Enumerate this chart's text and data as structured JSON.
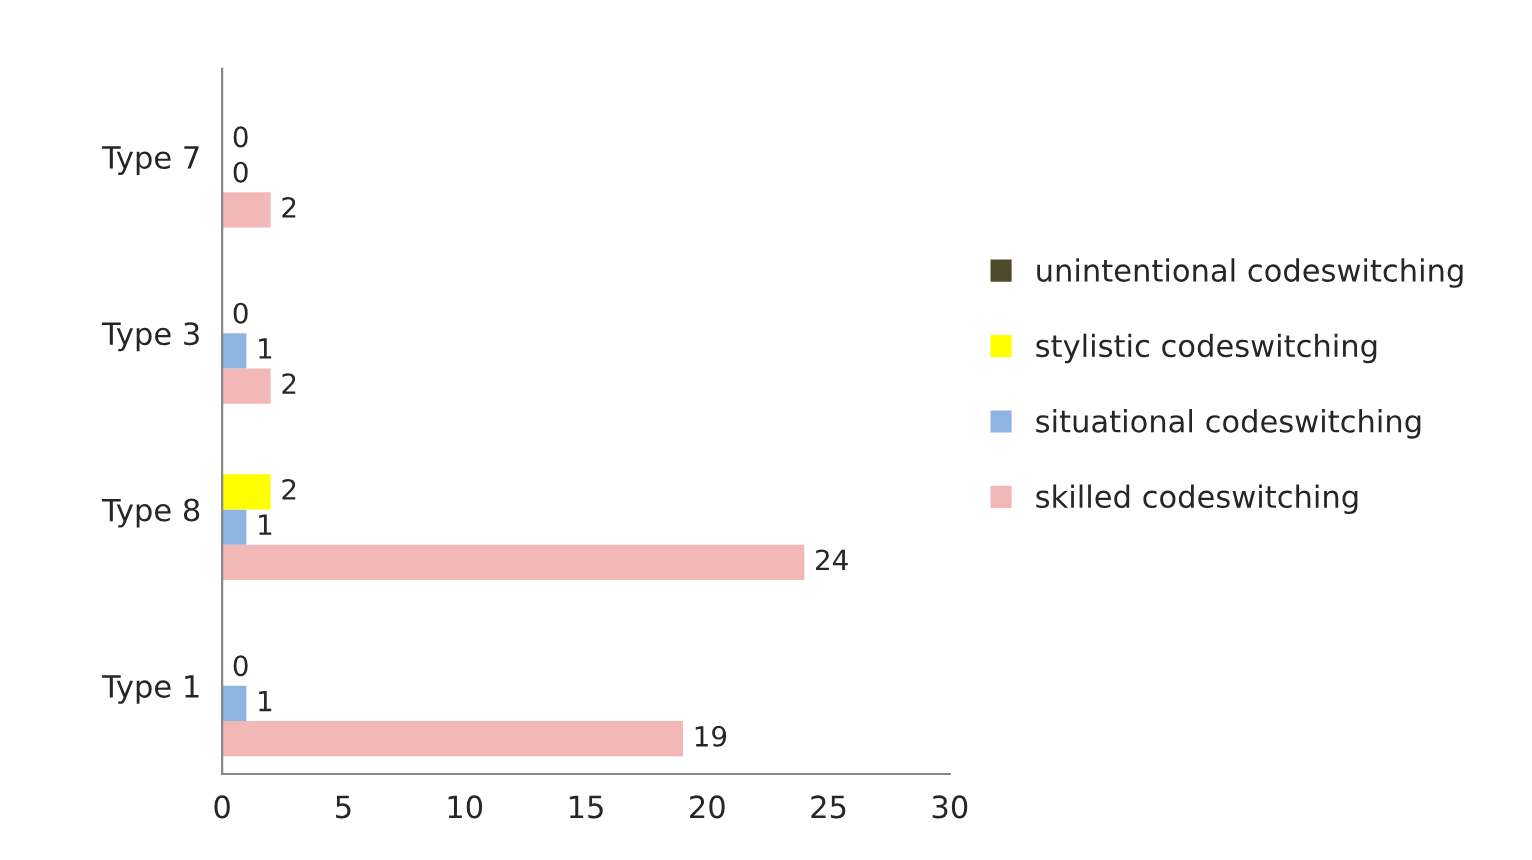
{
  "chart_data": {
    "type": "bar",
    "orientation": "horizontal",
    "categories": [
      "Type 7",
      "Type 3",
      "Type 8",
      "Type 1"
    ],
    "series": [
      {
        "name": "skilled codeswitching",
        "color": "#f2b8b8",
        "values": [
          2,
          2,
          24,
          19
        ]
      },
      {
        "name": "situational codeswitching",
        "color": "#8db4e2",
        "values": [
          0,
          1,
          1,
          1
        ]
      },
      {
        "name": "stylistic codeswitching",
        "color": "#ffff00",
        "values": [
          0,
          0,
          2,
          0
        ]
      },
      {
        "name": "unintentional codeswitching",
        "color": "#4f4a2a",
        "values": [
          null,
          null,
          null,
          null
        ]
      }
    ],
    "xlim": [
      0,
      30
    ],
    "xticks": [
      0,
      5,
      10,
      15,
      20,
      25,
      30
    ],
    "data_labels": true,
    "grid": false,
    "legend": "right"
  }
}
